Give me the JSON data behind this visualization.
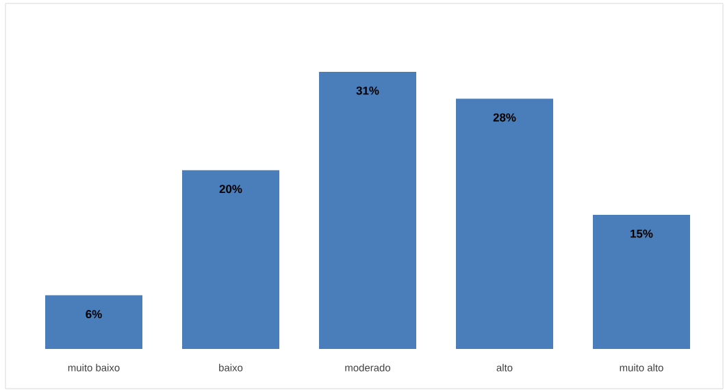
{
  "chart_data": {
    "type": "bar",
    "categories": [
      "muito baixo",
      "baixo",
      "moderado",
      "alto",
      "muito alto"
    ],
    "values": [
      6,
      20,
      31,
      28,
      15
    ],
    "value_labels": [
      "6%",
      "20%",
      "31%",
      "28%",
      "15%"
    ],
    "color": "#4a7ebb"
  }
}
